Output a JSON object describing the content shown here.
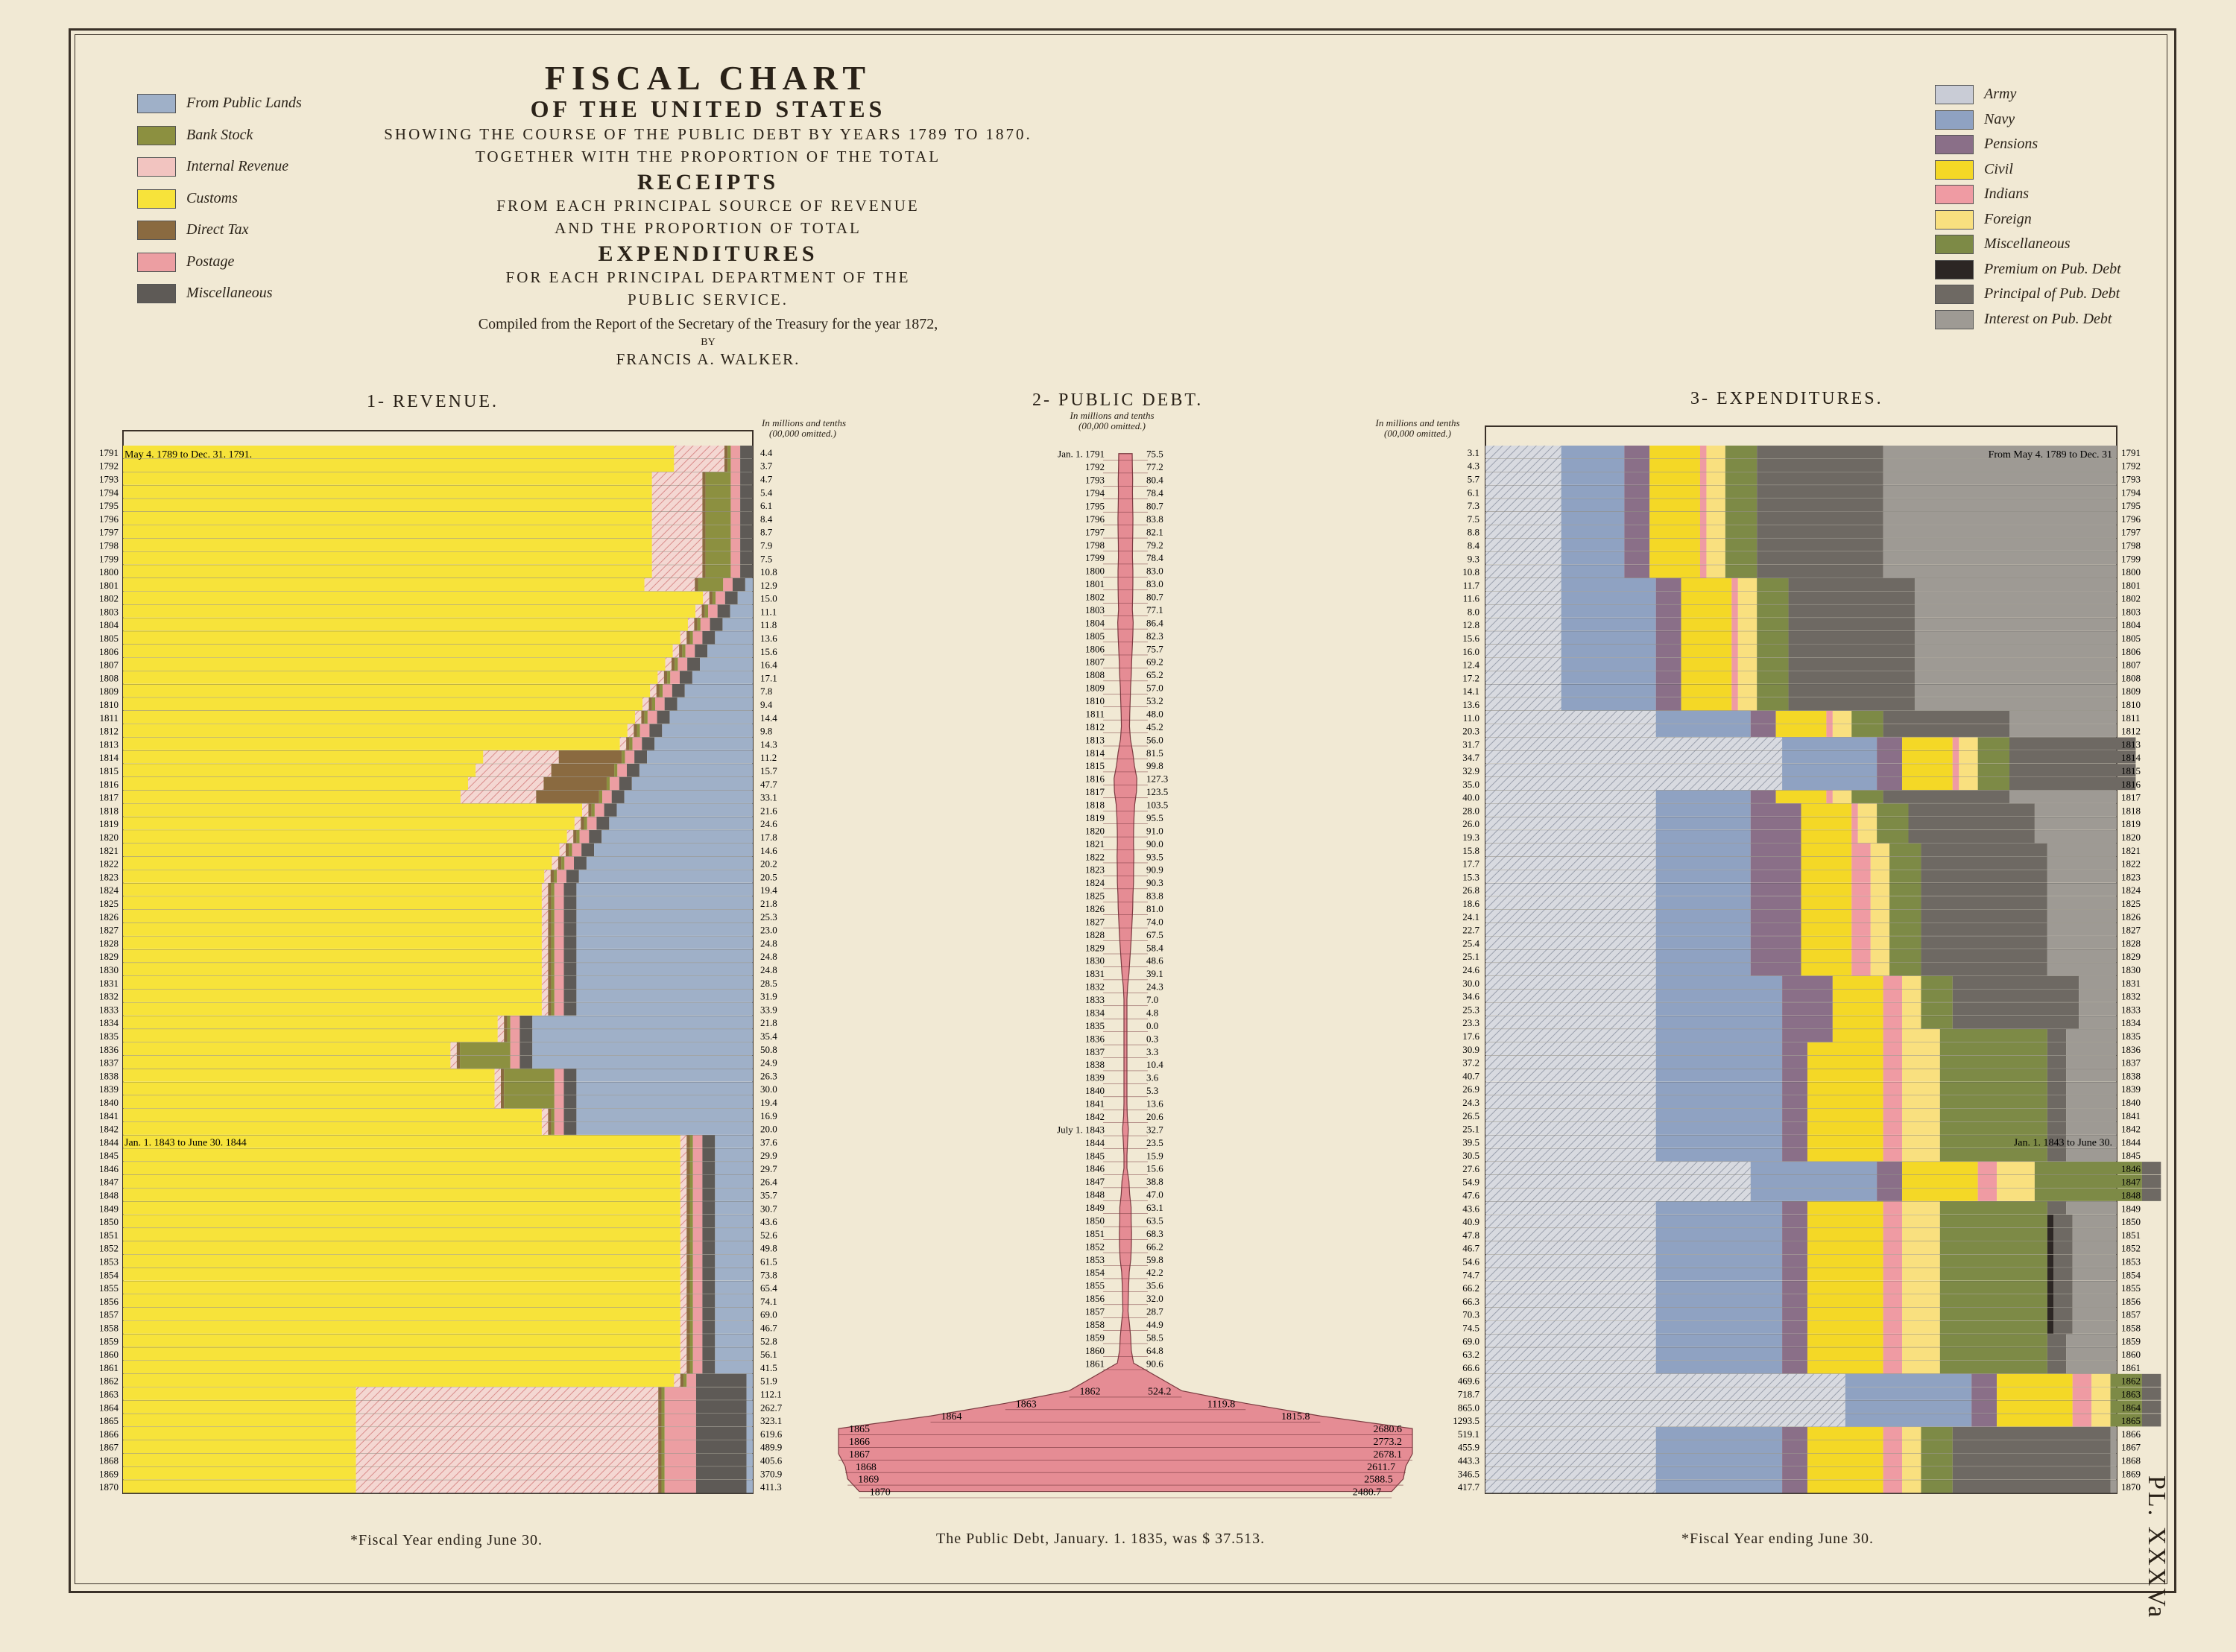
{
  "title": {
    "line1": "FISCAL CHART",
    "line2": "OF THE UNITED STATES",
    "line3": "SHOWING THE COURSE OF THE PUBLIC DEBT BY YEARS 1789 TO 1870.",
    "line4": "TOGETHER WITH THE PROPORTION OF THE TOTAL",
    "line5": "RECEIPTS",
    "line6": "FROM EACH PRINCIPAL SOURCE OF REVENUE",
    "line7": "AND THE PROPORTION OF TOTAL",
    "line8": "EXPENDITURES",
    "line9": "FOR EACH PRINCIPAL DEPARTMENT OF THE",
    "line10": "PUBLIC SERVICE.",
    "line11": "Compiled from the Report of the Secretary of the Treasury for the year 1872,",
    "line12": "BY",
    "line13": "FRANCIS A. WALKER."
  },
  "revenue_legend": [
    {
      "label": "From Public Lands",
      "color": "#9fb0c8"
    },
    {
      "label": "Bank Stock",
      "prefix": "\" \"",
      "color": "#8c9040"
    },
    {
      "label": "Internal Revenue",
      "prefix": "\"",
      "color": "#f2c4c0"
    },
    {
      "label": "Customs",
      "prefix": "\"",
      "color": "#f7e33a"
    },
    {
      "label": "Direct Tax",
      "prefix": "\"",
      "color": "#8a6a40"
    },
    {
      "label": "Postage",
      "prefix": "\"",
      "color": "#ec9ea2"
    },
    {
      "label": "Miscellaneous",
      "prefix": "\"",
      "color": "#5e5a56"
    }
  ],
  "expenditure_legend": [
    {
      "label": "Army",
      "color": "#c9ccd6"
    },
    {
      "label": "Navy",
      "color": "#8fa2c2"
    },
    {
      "label": "Pensions",
      "color": "#8a6f88"
    },
    {
      "label": "Civil",
      "color": "#f4d826"
    },
    {
      "label": "Indians",
      "color": "#ef9ba3"
    },
    {
      "label": "Foreign",
      "color": "#f9e07f"
    },
    {
      "label": "Miscellaneous",
      "color": "#7d8a46"
    },
    {
      "label": "Premium on Pub. Debt",
      "color": "#2c2624"
    },
    {
      "label": "Principal of Pub. Debt",
      "color": "#6e6963"
    },
    {
      "label": "Interest on Pub. Debt",
      "color": "#9e9a94"
    }
  ],
  "sections": {
    "revenue_title": "1- REVENUE.",
    "debt_title": "2- PUBLIC DEBT.",
    "expenditure_title": "3- EXPENDITURES.",
    "unit_line1": "In millions and tenths",
    "unit_line2": "(00,000 omitted.)",
    "revenue_first_label": "May 4. 1789 to Dec. 31. 1791.",
    "revenue_mid_label": "Jan. 1. 1843 to June 30. 1844",
    "debt_first_label": "Jan. 1. 1791",
    "debt_mid_label": "July 1. 1843",
    "exp_first_label": "From May 4. 1789 to Dec. 31",
    "exp_mid_label": "Jan. 1. 1843 to June 30.",
    "exp_first_year": "1791"
  },
  "footer": {
    "left": "*Fiscal Year ending June 30.",
    "center": "The Public Debt, January. 1. 1835, was $ 37.513.",
    "right": "*Fiscal Year ending June 30.",
    "plate": "PL. XXXVa"
  },
  "chart_data": {
    "type": "bar",
    "years": [
      "1791",
      "1792",
      "1793",
      "1794",
      "1795",
      "1796",
      "1797",
      "1798",
      "1799",
      "1800",
      "1801",
      "1802",
      "1803",
      "1804",
      "1805",
      "1806",
      "1807",
      "1808",
      "1809",
      "1810",
      "1811",
      "1812",
      "1813",
      "1814",
      "1815",
      "1816",
      "1817",
      "1818",
      "1819",
      "1820",
      "1821",
      "1822",
      "1823",
      "1824",
      "1825",
      "1826",
      "1827",
      "1828",
      "1829",
      "1830",
      "1831",
      "1832",
      "1833",
      "1834",
      "1835",
      "1836",
      "1837",
      "1838",
      "1839",
      "1840",
      "1841",
      "1842",
      "1844",
      "1845",
      "1846",
      "1847",
      "1848",
      "1849",
      "1850",
      "1851",
      "1852",
      "1853",
      "1854",
      "1855",
      "1856",
      "1857",
      "1858",
      "1859",
      "1860",
      "1861",
      "1862",
      "1863",
      "1864",
      "1865",
      "1866",
      "1867",
      "1868",
      "1869",
      "1870"
    ],
    "revenue_totals": [
      "4.4",
      "3.7",
      "4.7",
      "5.4",
      "6.1",
      "8.4",
      "8.7",
      "7.9",
      "7.5",
      "10.8",
      "12.9",
      "15.0",
      "11.1",
      "11.8",
      "13.6",
      "15.6",
      "16.4",
      "17.1",
      "7.8",
      "9.4",
      "14.4",
      "9.8",
      "14.3",
      "11.2",
      "15.7",
      "47.7",
      "33.1",
      "21.6",
      "24.6",
      "17.8",
      "14.6",
      "20.2",
      "20.5",
      "19.4",
      "21.8",
      "25.3",
      "23.0",
      "24.8",
      "24.8",
      "24.8",
      "28.5",
      "31.9",
      "33.9",
      "21.8",
      "35.4",
      "50.8",
      "24.9",
      "26.3",
      "30.0",
      "19.4",
      "16.9",
      "20.0",
      "37.6",
      "29.9",
      "29.7",
      "26.4",
      "35.7",
      "30.7",
      "43.6",
      "52.6",
      "49.8",
      "61.5",
      "73.8",
      "65.4",
      "74.1",
      "69.0",
      "46.7",
      "52.8",
      "56.1",
      "41.5",
      "51.9",
      "112.1",
      "262.7",
      "323.1",
      "619.6",
      "489.9",
      "405.6",
      "370.9",
      "411.3"
    ],
    "debt_years": [
      "1791",
      "1792",
      "1793",
      "1794",
      "1795",
      "1796",
      "1797",
      "1798",
      "1799",
      "1800",
      "1801",
      "1802",
      "1803",
      "1804",
      "1805",
      "1806",
      "1807",
      "1808",
      "1809",
      "1810",
      "1811",
      "1812",
      "1813",
      "1814",
      "1815",
      "1816",
      "1817",
      "1818",
      "1819",
      "1820",
      "1821",
      "1822",
      "1823",
      "1824",
      "1825",
      "1826",
      "1827",
      "1828",
      "1829",
      "1830",
      "1831",
      "1832",
      "1833",
      "1834",
      "1835",
      "1836",
      "1837",
      "1838",
      "1839",
      "1840",
      "1841",
      "1842",
      "1843",
      "1844",
      "1845",
      "1846",
      "1847",
      "1848",
      "1849",
      "1850",
      "1851",
      "1852",
      "1853",
      "1854",
      "1855",
      "1856",
      "1857",
      "1858",
      "1859",
      "1860",
      "1861"
    ],
    "debt_values": [
      "75.5",
      "77.2",
      "80.4",
      "78.4",
      "80.7",
      "83.8",
      "82.1",
      "79.2",
      "78.4",
      "83.0",
      "83.0",
      "80.7",
      "77.1",
      "86.4",
      "82.3",
      "75.7",
      "69.2",
      "65.2",
      "57.0",
      "53.2",
      "48.0",
      "45.2",
      "56.0",
      "81.5",
      "99.8",
      "127.3",
      "123.5",
      "103.5",
      "95.5",
      "91.0",
      "90.0",
      "93.5",
      "90.9",
      "90.3",
      "83.8",
      "81.0",
      "74.0",
      "67.5",
      "58.4",
      "48.6",
      "39.1",
      "24.3",
      "7.0",
      "4.8",
      "0.0",
      "0.3",
      "3.3",
      "10.4",
      "3.6",
      "5.3",
      "13.6",
      "20.6",
      "32.7",
      "23.5",
      "15.9",
      "15.6",
      "38.8",
      "47.0",
      "63.1",
      "63.5",
      "68.3",
      "66.2",
      "59.8",
      "42.2",
      "35.6",
      "32.0",
      "28.7",
      "44.9",
      "58.5",
      "64.8",
      "90.6"
    ],
    "debt_late": [
      {
        "year": "1862",
        "value": "524.2"
      },
      {
        "year": "1863",
        "value": "1119.8"
      },
      {
        "year": "1864",
        "value": "1815.8"
      },
      {
        "year": "1865",
        "value": "2680.6"
      },
      {
        "year": "1866",
        "value": "2773.2"
      },
      {
        "year": "1867",
        "value": "2678.1"
      },
      {
        "year": "1868",
        "value": "2611.7"
      },
      {
        "year": "1869",
        "value": "2588.5"
      },
      {
        "year": "1870",
        "value": "2480.7"
      }
    ],
    "expenditure_totals": [
      "3.1",
      "4.3",
      "5.7",
      "6.1",
      "7.3",
      "7.5",
      "8.8",
      "8.4",
      "9.3",
      "10.8",
      "11.7",
      "11.6",
      "8.0",
      "12.8",
      "15.6",
      "16.0",
      "12.4",
      "17.2",
      "14.1",
      "13.6",
      "11.0",
      "20.3",
      "31.7",
      "34.7",
      "32.9",
      "35.0",
      "40.0",
      "28.0",
      "26.0",
      "19.3",
      "15.8",
      "17.7",
      "15.3",
      "26.8",
      "18.6",
      "24.1",
      "22.7",
      "25.4",
      "25.1",
      "24.6",
      "30.0",
      "34.6",
      "25.3",
      "23.3",
      "17.6",
      "30.9",
      "37.2",
      "40.7",
      "26.9",
      "24.3",
      "26.5",
      "25.1",
      "39.5",
      "30.5",
      "27.6",
      "54.9",
      "47.6",
      "43.6",
      "40.9",
      "47.8",
      "46.7",
      "54.6",
      "74.7",
      "66.2",
      "66.3",
      "70.3",
      "74.5",
      "69.0",
      "63.2",
      "66.6",
      "469.6",
      "718.7",
      "865.0",
      "1293.5",
      "519.1",
      "455.9",
      "443.3",
      "346.5",
      "417.7"
    ]
  }
}
